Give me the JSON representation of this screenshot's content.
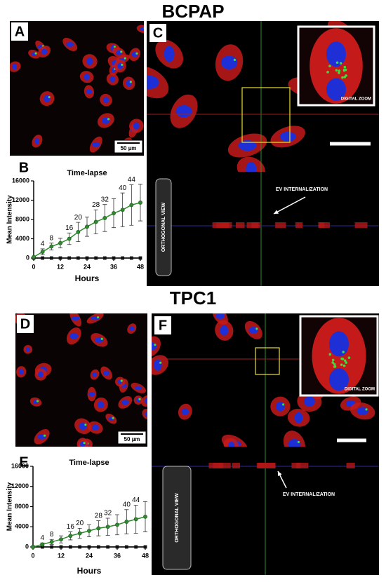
{
  "sections": [
    {
      "title": "BCPAP",
      "image_label": "A",
      "scale_label": "50 µm",
      "view_label": "C",
      "zoom_label": "DIGITAL ZOOM",
      "orthogonal_label": "ORTHOGONAL VIEW",
      "arrow_label": "EV INTERNALIZATION",
      "chart_label": "B"
    },
    {
      "title": "TPC1",
      "image_label": "D",
      "scale_label": "50 µm",
      "view_label": "F",
      "zoom_label": "DIGITAL ZOOM",
      "orthogonal_label": "ORTHOGONAL VIEW",
      "arrow_label": "EV INTERNALIZATION",
      "chart_label": "E"
    }
  ],
  "chart_data": [
    {
      "type": "line",
      "title": "Time-lapse",
      "x_label": "Hours",
      "y_label": "Mean Intensity",
      "x": [
        0,
        4,
        8,
        12,
        16,
        20,
        24,
        28,
        32,
        36,
        40,
        44,
        48
      ],
      "series": [
        {
          "color": "#2e8b2e",
          "values": [
            200,
            1300,
            2400,
            3100,
            4000,
            5400,
            6500,
            7500,
            8300,
            9300,
            10000,
            11000,
            11500
          ],
          "errors": [
            0,
            600,
            700,
            1000,
            1200,
            2000,
            2000,
            2500,
            2800,
            3000,
            3500,
            4200,
            3800
          ]
        },
        {
          "color": "#111111",
          "values": [
            0,
            0,
            0,
            0,
            0,
            0,
            0,
            0,
            0,
            0,
            0,
            0,
            0
          ]
        }
      ],
      "point_labels": [
        4,
        8,
        16,
        20,
        28,
        32,
        40,
        44
      ],
      "xlim": [
        0,
        48
      ],
      "ylim": [
        0,
        16000
      ],
      "xticks": [
        0,
        12,
        24,
        36,
        48
      ],
      "yticks": [
        0,
        4000,
        8000,
        12000,
        16000
      ]
    },
    {
      "type": "line",
      "title": "Time-lapse",
      "x_label": "Hours",
      "y_label": "Mean Intensity",
      "x": [
        0,
        4,
        8,
        12,
        16,
        20,
        24,
        28,
        32,
        36,
        40,
        44,
        48
      ],
      "series": [
        {
          "color": "#2e8b2e",
          "values": [
            0,
            500,
            1000,
            1500,
            2200,
            2700,
            3200,
            3700,
            4000,
            4400,
            5000,
            5500,
            6000
          ],
          "errors": [
            0,
            300,
            500,
            700,
            800,
            1000,
            1200,
            1500,
            1700,
            2000,
            2400,
            2800,
            3000
          ]
        },
        {
          "color": "#111111",
          "values": [
            0,
            0,
            0,
            0,
            0,
            0,
            0,
            0,
            0,
            0,
            0,
            0,
            0
          ]
        }
      ],
      "point_labels": [
        4,
        8,
        16,
        20,
        28,
        32,
        40,
        44
      ],
      "xlim": [
        0,
        48
      ],
      "ylim": [
        0,
        16000
      ],
      "xticks": [
        0,
        12,
        24,
        36,
        48
      ],
      "yticks": [
        0,
        4000,
        8000,
        12000,
        16000
      ]
    }
  ]
}
